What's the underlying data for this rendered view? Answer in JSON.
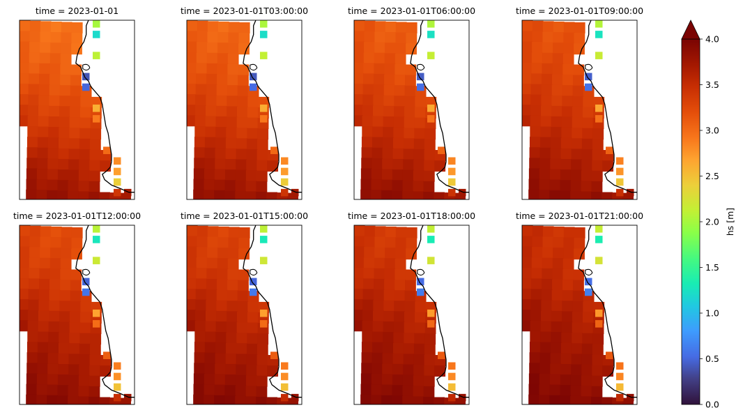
{
  "chart_data": {
    "type": "heatmap",
    "variable": "hs",
    "panels": [
      {
        "title": "time = 2023-01-01",
        "t": 0
      },
      {
        "title": "time = 2023-01-01T03:00:00",
        "t": 1
      },
      {
        "title": "time = 2023-01-01T06:00:00",
        "t": 2
      },
      {
        "title": "time = 2023-01-01T09:00:00",
        "t": 3
      },
      {
        "title": "time = 2023-01-01T12:00:00",
        "t": 4
      },
      {
        "title": "time = 2023-01-01T15:00:00",
        "t": 5
      },
      {
        "title": "time = 2023-01-01T18:00:00",
        "t": 6
      },
      {
        "title": "time = 2023-01-01T21:00:00",
        "t": 7
      }
    ],
    "colorbar": {
      "label": "hs [m]",
      "vmin": 0.0,
      "vmax": 4.0,
      "extend": "max",
      "colormap": "turbo",
      "ticks": [
        "0.0",
        "0.5",
        "1.0",
        "1.5",
        "2.0",
        "2.5",
        "3.0",
        "3.5",
        "4.0"
      ]
    },
    "grid_shape": [
      17,
      11
    ],
    "coastline_color": "#000000"
  }
}
